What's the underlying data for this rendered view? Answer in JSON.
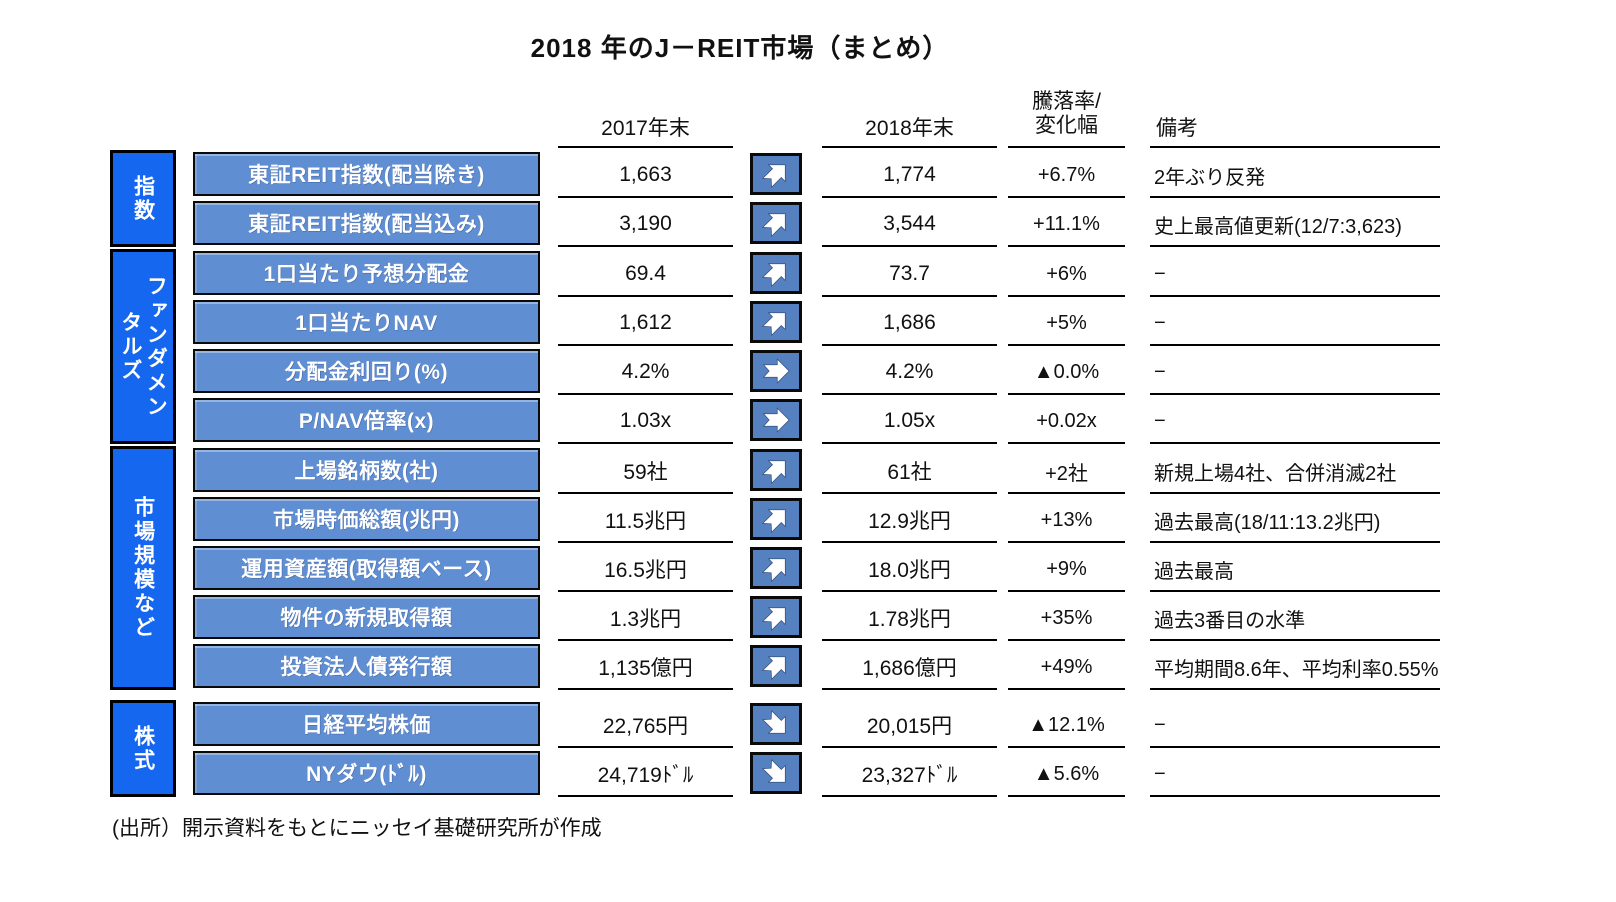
{
  "title": "2018 年のJ－REIT市場（まとめ）",
  "footer": {
    "source": "(出所）開示資料をもとにニッセイ基礎研究所が作成"
  },
  "colors": {
    "category_blue": "#1667f0",
    "label_blue": "#5f8ed2",
    "arrow_blue": "#5681c1",
    "line_black": "#000000"
  },
  "chart_data": {
    "type": "table",
    "title": "2018 年のJ－REIT市場（まとめ）",
    "header": {
      "y2017": "2017年末",
      "y2018": "2018年末",
      "change_line1": "騰落率/",
      "change_line2": "変化幅",
      "notes": "備考"
    },
    "sections": [
      {
        "category": "指数",
        "rows": [
          {
            "label": "東証REIT指数(配当除き)",
            "v2017": "1,663",
            "trend": "up",
            "v2018": "1,774",
            "change": "+6.7%",
            "note": "2年ぶり反発"
          },
          {
            "label": "東証REIT指数(配当込み)",
            "v2017": "3,190",
            "trend": "up",
            "v2018": "3,544",
            "change": "+11.1%",
            "note": "史上最高値更新(12/7:3,623)"
          }
        ]
      },
      {
        "category": "ファンダメン\nタルズ",
        "rows": [
          {
            "label": "1口当たり予想分配金",
            "v2017": "69.4",
            "trend": "up",
            "v2018": "73.7",
            "change": "+6%",
            "note": "−"
          },
          {
            "label": "1口当たりNAV",
            "v2017": "1,612",
            "trend": "up",
            "v2018": "1,686",
            "change": "+5%",
            "note": "−"
          },
          {
            "label": "分配金利回り(%)",
            "v2017": "4.2%",
            "trend": "flat",
            "v2018": "4.2%",
            "change": "▲0.0%",
            "note": "−"
          },
          {
            "label": "P/NAV倍率(x)",
            "v2017": "1.03x",
            "trend": "flat",
            "v2018": "1.05x",
            "change": "+0.02x",
            "note": "−"
          }
        ]
      },
      {
        "category": "市場規模など",
        "rows": [
          {
            "label": "上場銘柄数(社)",
            "v2017": "59社",
            "trend": "up",
            "v2018": "61社",
            "change": "+2社",
            "note": "新規上場4社、合併消滅2社"
          },
          {
            "label": "市場時価総額(兆円)",
            "v2017": "11.5兆円",
            "trend": "up",
            "v2018": "12.9兆円",
            "change": "+13%",
            "note": "過去最高(18/11:13.2兆円)"
          },
          {
            "label": "運用資産額(取得額ベース)",
            "v2017": "16.5兆円",
            "trend": "up",
            "v2018": "18.0兆円",
            "change": "+9%",
            "note": "過去最高"
          },
          {
            "label": "物件の新規取得額",
            "v2017": "1.3兆円",
            "trend": "up",
            "v2018": "1.78兆円",
            "change": "+35%",
            "note": "過去3番目の水準"
          },
          {
            "label": "投資法人債発行額",
            "v2017": "1,135億円",
            "trend": "up",
            "v2018": "1,686億円",
            "change": "+49%",
            "note": "平均期間8.6年、平均利率0.55%"
          }
        ]
      },
      {
        "category": "株式",
        "rows": [
          {
            "label": "日経平均株価",
            "v2017": "22,765円",
            "trend": "down",
            "v2018": "20,015円",
            "change": "▲12.1%",
            "note": "−"
          },
          {
            "label": "NYダウ(ﾄﾞﾙ)",
            "v2017": "24,719ﾄﾞﾙ",
            "trend": "down",
            "v2018": "23,327ﾄﾞﾙ",
            "change": "▲5.6%",
            "note": "−"
          }
        ]
      }
    ]
  }
}
